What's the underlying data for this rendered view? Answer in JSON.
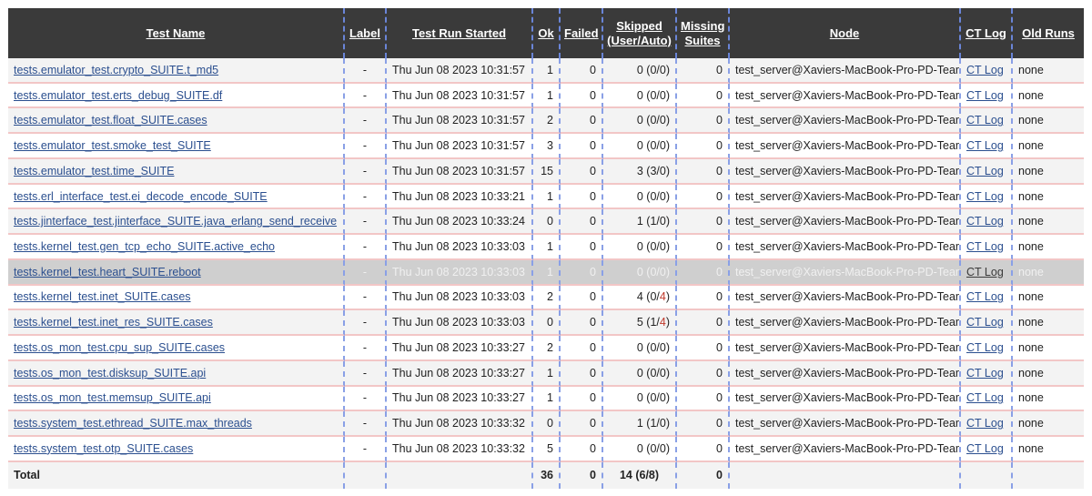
{
  "headers": {
    "test_name": "Test Name",
    "label": "Label",
    "started": "Test Run Started",
    "ok": "Ok",
    "failed": "Failed",
    "skipped_1": "Skipped",
    "skipped_2": "(User/Auto)",
    "missing_1": "Missing",
    "missing_2": "Suites",
    "node": "Node",
    "ct_log": "CT Log",
    "old_runs": "Old Runs"
  },
  "rows": [
    {
      "name": "tests.emulator_test.crypto_SUITE.t_md5",
      "label": "-",
      "started": "Thu Jun 08 2023 10:31:57",
      "ok": "1",
      "failed": "0",
      "skip_pre": "0 (0/",
      "skip_auto": "0",
      "skip_post": ")",
      "missing": "0",
      "node": "test_server@Xaviers-MacBook-Pro-PD-Team",
      "ctlog": "CT Log",
      "old": "none"
    },
    {
      "name": "tests.emulator_test.erts_debug_SUITE.df",
      "label": "-",
      "started": "Thu Jun 08 2023 10:31:57",
      "ok": "1",
      "failed": "0",
      "skip_pre": "0 (0/",
      "skip_auto": "0",
      "skip_post": ")",
      "missing": "0",
      "node": "test_server@Xaviers-MacBook-Pro-PD-Team",
      "ctlog": "CT Log",
      "old": "none"
    },
    {
      "name": "tests.emulator_test.float_SUITE.cases",
      "label": "-",
      "started": "Thu Jun 08 2023 10:31:57",
      "ok": "2",
      "failed": "0",
      "skip_pre": "0 (0/",
      "skip_auto": "0",
      "skip_post": ")",
      "missing": "0",
      "node": "test_server@Xaviers-MacBook-Pro-PD-Team",
      "ctlog": "CT Log",
      "old": "none"
    },
    {
      "name": "tests.emulator_test.smoke_test_SUITE",
      "label": "-",
      "started": "Thu Jun 08 2023 10:31:57",
      "ok": "3",
      "failed": "0",
      "skip_pre": "0 (0/",
      "skip_auto": "0",
      "skip_post": ")",
      "missing": "0",
      "node": "test_server@Xaviers-MacBook-Pro-PD-Team",
      "ctlog": "CT Log",
      "old": "none"
    },
    {
      "name": "tests.emulator_test.time_SUITE",
      "label": "-",
      "started": "Thu Jun 08 2023 10:31:57",
      "ok": "15",
      "failed": "0",
      "skip_pre": "3 (3/",
      "skip_auto": "0",
      "skip_post": ")",
      "missing": "0",
      "node": "test_server@Xaviers-MacBook-Pro-PD-Team",
      "ctlog": "CT Log",
      "old": "none"
    },
    {
      "name": "tests.erl_interface_test.ei_decode_encode_SUITE",
      "label": "-",
      "started": "Thu Jun 08 2023 10:33:21",
      "ok": "1",
      "failed": "0",
      "skip_pre": "0 (0/",
      "skip_auto": "0",
      "skip_post": ")",
      "missing": "0",
      "node": "test_server@Xaviers-MacBook-Pro-PD-Team",
      "ctlog": "CT Log",
      "old": "none"
    },
    {
      "name": "tests.jinterface_test.jinterface_SUITE.java_erlang_send_receive",
      "label": "-",
      "started": "Thu Jun 08 2023 10:33:24",
      "ok": "0",
      "failed": "0",
      "skip_pre": "1 (1/",
      "skip_auto": "0",
      "skip_post": ")",
      "missing": "0",
      "node": "test_server@Xaviers-MacBook-Pro-PD-Team",
      "ctlog": "CT Log",
      "old": "none"
    },
    {
      "name": "tests.kernel_test.gen_tcp_echo_SUITE.active_echo",
      "label": "-",
      "started": "Thu Jun 08 2023 10:33:03",
      "ok": "1",
      "failed": "0",
      "skip_pre": "0 (0/",
      "skip_auto": "0",
      "skip_post": ")",
      "missing": "0",
      "node": "test_server@Xaviers-MacBook-Pro-PD-Team",
      "ctlog": "CT Log",
      "old": "none"
    },
    {
      "name": "tests.kernel_test.heart_SUITE.reboot",
      "label": "-",
      "started": "Thu Jun 08 2023 10:33:03",
      "ok": "1",
      "failed": "0",
      "skip_pre": "0 (0/",
      "skip_auto": "0",
      "skip_post": ")",
      "missing": "0",
      "node": "test_server@Xaviers-MacBook-Pro-PD-Team",
      "ctlog": "CT Log",
      "old": "none",
      "highlight": true
    },
    {
      "name": "tests.kernel_test.inet_SUITE.cases",
      "label": "-",
      "started": "Thu Jun 08 2023 10:33:03",
      "ok": "2",
      "failed": "0",
      "skip_pre": "4 (0/",
      "skip_auto": "4",
      "skip_post": ")",
      "missing": "0",
      "node": "test_server@Xaviers-MacBook-Pro-PD-Team",
      "ctlog": "CT Log",
      "old": "none",
      "auto_red": true
    },
    {
      "name": "tests.kernel_test.inet_res_SUITE.cases",
      "label": "-",
      "started": "Thu Jun 08 2023 10:33:03",
      "ok": "0",
      "failed": "0",
      "skip_pre": "5 (1/",
      "skip_auto": "4",
      "skip_post": ")",
      "missing": "0",
      "node": "test_server@Xaviers-MacBook-Pro-PD-Team",
      "ctlog": "CT Log",
      "old": "none",
      "auto_red": true
    },
    {
      "name": "tests.os_mon_test.cpu_sup_SUITE.cases",
      "label": "-",
      "started": "Thu Jun 08 2023 10:33:27",
      "ok": "2",
      "failed": "0",
      "skip_pre": "0 (0/",
      "skip_auto": "0",
      "skip_post": ")",
      "missing": "0",
      "node": "test_server@Xaviers-MacBook-Pro-PD-Team",
      "ctlog": "CT Log",
      "old": "none"
    },
    {
      "name": "tests.os_mon_test.disksup_SUITE.api",
      "label": "-",
      "started": "Thu Jun 08 2023 10:33:27",
      "ok": "1",
      "failed": "0",
      "skip_pre": "0 (0/",
      "skip_auto": "0",
      "skip_post": ")",
      "missing": "0",
      "node": "test_server@Xaviers-MacBook-Pro-PD-Team",
      "ctlog": "CT Log",
      "old": "none"
    },
    {
      "name": "tests.os_mon_test.memsup_SUITE.api",
      "label": "-",
      "started": "Thu Jun 08 2023 10:33:27",
      "ok": "1",
      "failed": "0",
      "skip_pre": "0 (0/",
      "skip_auto": "0",
      "skip_post": ")",
      "missing": "0",
      "node": "test_server@Xaviers-MacBook-Pro-PD-Team",
      "ctlog": "CT Log",
      "old": "none"
    },
    {
      "name": "tests.system_test.ethread_SUITE.max_threads",
      "label": "-",
      "started": "Thu Jun 08 2023 10:33:32",
      "ok": "0",
      "failed": "0",
      "skip_pre": "1 (1/",
      "skip_auto": "0",
      "skip_post": ")",
      "missing": "0",
      "node": "test_server@Xaviers-MacBook-Pro-PD-Team",
      "ctlog": "CT Log",
      "old": "none"
    },
    {
      "name": "tests.system_test.otp_SUITE.cases",
      "label": "-",
      "started": "Thu Jun 08 2023 10:33:32",
      "ok": "5",
      "failed": "0",
      "skip_pre": "0 (0/",
      "skip_auto": "0",
      "skip_post": ")",
      "missing": "0",
      "node": "test_server@Xaviers-MacBook-Pro-PD-Team",
      "ctlog": "CT Log",
      "old": "none"
    }
  ],
  "total": {
    "label": "Total",
    "ok": "36",
    "failed": "0",
    "skipped": "14 (6/8)",
    "missing": "0"
  },
  "colors": {
    "header_bg": "#3a3a3a",
    "link": "#2b4f8f",
    "highlight_row": "#cfcfcf",
    "auto_skip_red": "#c0392b"
  }
}
